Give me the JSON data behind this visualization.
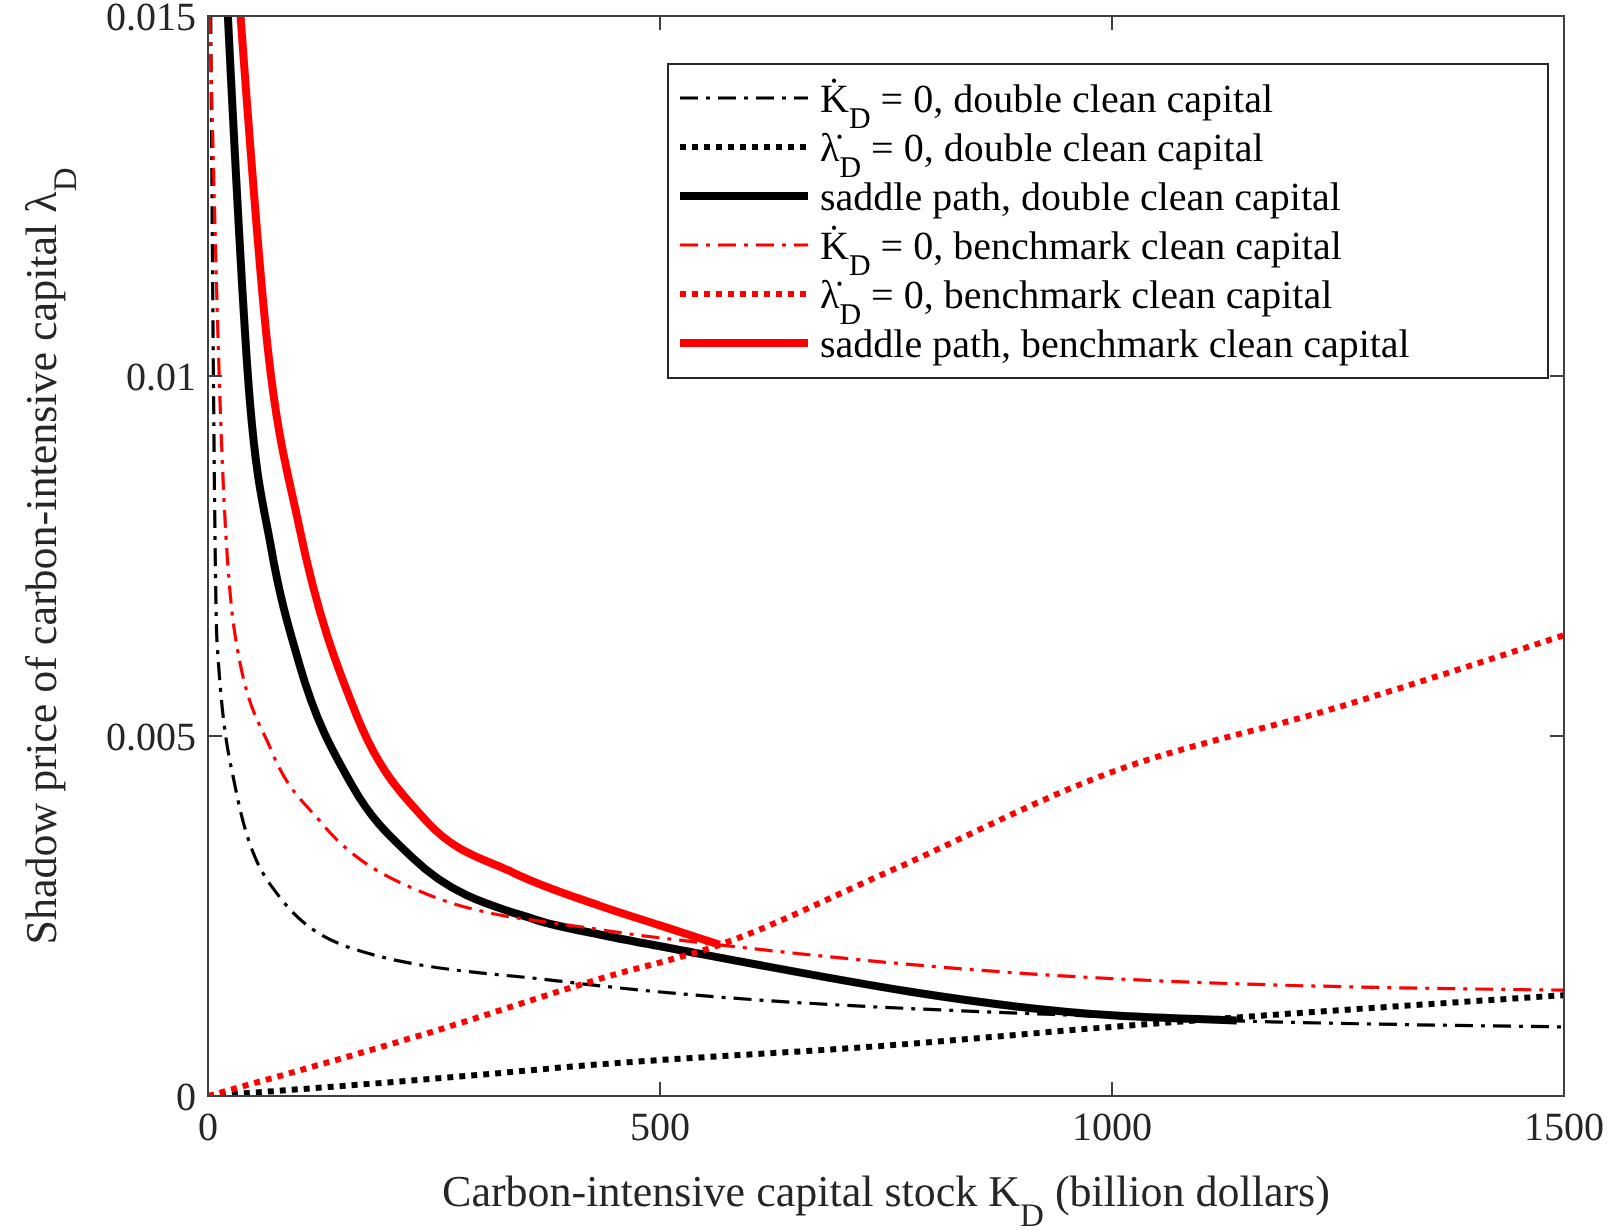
{
  "chart_data": {
    "type": "line",
    "xlabel": "Carbon-intensive capital stock K$_{D}$ (billion dollars)",
    "ylabel": "Shadow price of carbon-intensive capital λ$_{D}$",
    "xlim": [
      0,
      1500
    ],
    "xticks": [
      0,
      500,
      1000,
      1500
    ],
    "ylim": [
      0,
      0.015
    ],
    "yticks": [
      0,
      0.005,
      0.01,
      0.015
    ],
    "grid": false,
    "legend": "top right",
    "series": [
      {
        "name": "K̇$_{D}$ = 0, double clean capital",
        "color": "#000000",
        "line_style": "dashed",
        "x": [
          3,
          10,
          30,
          77,
          172,
          386,
          434,
          1000,
          1500
        ],
        "values": [
          0.015,
          0.0063,
          0.0043,
          0.0028,
          0.002,
          0.0016,
          0.00153,
          0.0011,
          0.00096
        ]
      },
      {
        "name": "λ̇$_{D}$ = 0, double clean capital",
        "color": "#000000",
        "line_style": "dotted",
        "x": [
          0,
          250,
          434,
          750,
          1000,
          1500
        ],
        "values": [
          0,
          0.00024,
          0.00044,
          0.0007,
          0.00096,
          0.0014
        ]
      },
      {
        "name": "saddle path, double clean capital",
        "color": "#000000",
        "line_style": "solid",
        "x": [
          22,
          46,
          70,
          101,
          160,
          227,
          362,
          434,
          500,
          1000,
          1138
        ],
        "values": [
          0.015,
          0.0097,
          0.0076,
          0.006,
          0.0043,
          0.0033,
          0.00245,
          0.00224,
          0.00208,
          0.00112,
          0.00105
        ]
      },
      {
        "name": "K̇$_{D}$ = 0, benchmark clean capital",
        "color": "#ff0000",
        "line_style": "dashed",
        "x": [
          2,
          14,
          30,
          70,
          125,
          243,
          434,
          566,
          1000,
          1500
        ],
        "values": [
          0.015,
          0.0094,
          0.0064,
          0.0048,
          0.0038,
          0.0028,
          0.00231,
          0.0021,
          0.00163,
          0.00147
        ]
      },
      {
        "name": "λ̇$_{D}$ = 0, benchmark clean capital",
        "color": "#ff0000",
        "line_style": "dotted",
        "x": [
          0,
          250,
          434,
          566,
          750,
          1000,
          1250,
          1500
        ],
        "values": [
          0,
          0.0009,
          0.00163,
          0.0021,
          0.0031,
          0.0045,
          0.0054,
          0.0064
        ]
      },
      {
        "name": "saddle path, benchmark clean capital",
        "color": "#ff0000",
        "line_style": "solid",
        "x": [
          36,
          66,
          101,
          164,
          243,
          338,
          434,
          500,
          566
        ],
        "values": [
          0.015,
          0.0104,
          0.0079,
          0.0053,
          0.0038,
          0.0031,
          0.00264,
          0.00237,
          0.0021
        ]
      }
    ]
  }
}
